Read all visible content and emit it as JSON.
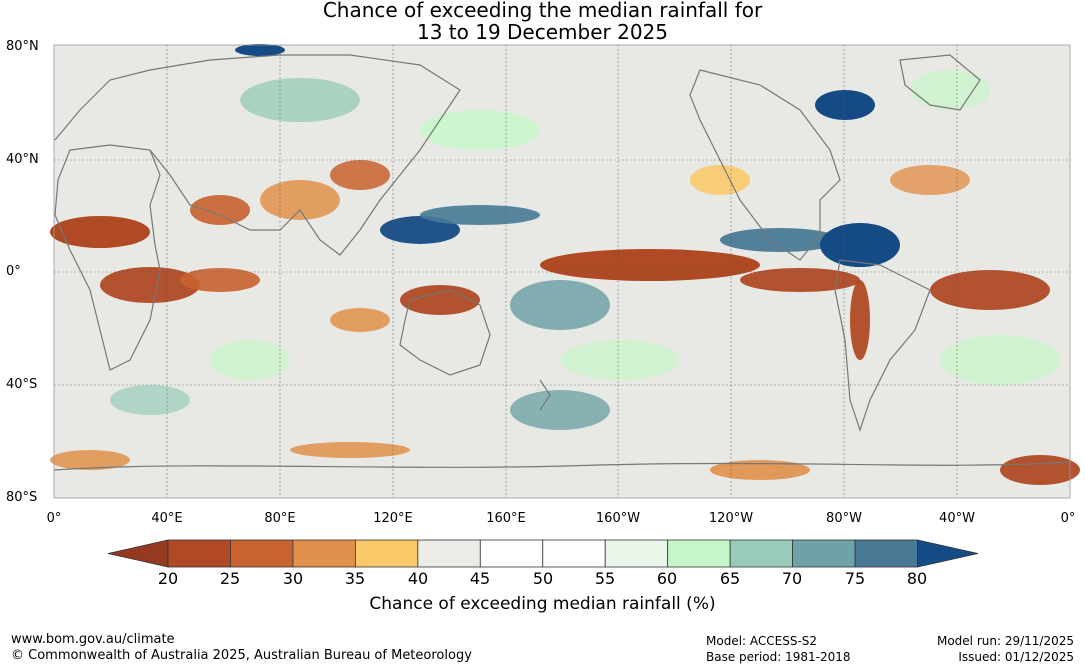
{
  "title": {
    "line1": "Chance of exceeding the median rainfall for",
    "line2": "13 to 19 December 2025"
  },
  "map": {
    "lat_labels": [
      "80°N",
      "40°N",
      "0°",
      "40°S",
      "80°S"
    ],
    "lon_labels": [
      "0°",
      "40°E",
      "80°E",
      "120°E",
      "160°E",
      "160°W",
      "120°W",
      "80°W",
      "40°W",
      "0°"
    ],
    "background_color": "#e8e8e4",
    "coastline_color": "#777777"
  },
  "colorbar": {
    "tick_labels": [
      "20",
      "25",
      "30",
      "35",
      "40",
      "45",
      "50",
      "55",
      "60",
      "65",
      "70",
      "75",
      "80"
    ],
    "colors": [
      "#933a20",
      "#b04a24",
      "#c8622e",
      "#e0904a",
      "#fbc96a",
      "#ebebe7",
      "#ffffff",
      "#ffffff",
      "#eaf6ea",
      "#c6f7c8",
      "#98ccb8",
      "#6fa2a8",
      "#487a96",
      "#144b85"
    ],
    "label": "Chance of exceeding median rainfall (%)"
  },
  "footer": {
    "url": "www.bom.gov.au/climate",
    "copyright": "© Commonwealth of Australia 2025, Australian Bureau of Meteorology",
    "model": "Model: ACCESS-S2",
    "base_period": "Base period: 1981-2018",
    "model_run": "Model run: 29/11/2025",
    "issued": "Issued: 01/12/2025"
  }
}
